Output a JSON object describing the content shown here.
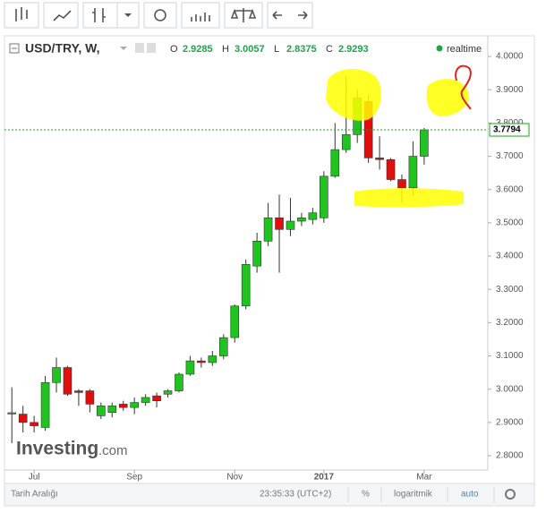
{
  "chart_data": {
    "type": "candlestick",
    "symbol": "USD/TRY, W,",
    "ohlc_header": [
      {
        "label": "O",
        "value": 2.9285
      },
      {
        "label": "H",
        "value": 3.0057
      },
      {
        "label": "L",
        "value": 2.8375
      },
      {
        "label": "C",
        "value": 2.9293
      }
    ],
    "realtime_label": "realtime",
    "categories": [
      null,
      null,
      "Jul",
      null,
      null,
      null,
      null,
      null,
      null,
      null,
      null,
      "Sep",
      null,
      null,
      null,
      null,
      null,
      null,
      null,
      null,
      "Nov",
      null,
      null,
      null,
      null,
      null,
      null,
      null,
      "2017",
      null,
      null,
      null,
      null,
      null,
      null,
      null,
      null,
      "Mar"
    ],
    "open": [
      2.9285,
      2.925,
      2.9,
      2.885,
      3.02,
      3.065,
      2.995,
      2.995,
      2.92,
      2.93,
      2.955,
      2.945,
      2.96,
      2.98,
      2.985,
      2.995,
      3.045,
      3.085,
      3.08,
      3.1,
      3.155,
      3.25,
      3.37,
      3.445,
      3.515,
      3.48,
      3.505,
      3.51,
      3.515,
      3.64,
      3.72,
      3.765,
      3.865,
      3.695,
      3.69,
      3.63,
      3.605,
      3.7
    ],
    "high": [
      3.0057,
      2.95,
      2.92,
      3.04,
      3.095,
      3.07,
      3.0,
      3.0,
      2.96,
      2.96,
      2.965,
      2.975,
      2.985,
      2.99,
      3.0,
      3.05,
      3.1,
      3.095,
      3.115,
      3.165,
      3.255,
      3.39,
      3.47,
      3.56,
      3.585,
      3.575,
      3.53,
      3.545,
      3.655,
      3.8,
      3.94,
      3.9,
      3.885,
      3.76,
      3.695,
      3.645,
      3.745,
      3.785
    ],
    "low": [
      2.8375,
      2.87,
      2.87,
      2.875,
      2.99,
      2.98,
      2.95,
      2.93,
      2.91,
      2.915,
      2.935,
      2.925,
      2.95,
      2.945,
      2.975,
      2.99,
      3.04,
      3.065,
      3.07,
      3.09,
      3.14,
      3.24,
      3.35,
      3.43,
      3.35,
      3.46,
      3.49,
      3.495,
      3.5,
      3.635,
      3.71,
      3.74,
      3.68,
      3.66,
      3.625,
      3.56,
      3.58,
      3.675
    ],
    "close": [
      2.9293,
      2.9,
      2.89,
      3.02,
      3.065,
      2.985,
      2.99,
      2.955,
      2.95,
      2.95,
      2.945,
      2.96,
      2.975,
      2.965,
      2.995,
      3.045,
      3.085,
      3.08,
      3.1,
      3.155,
      3.25,
      3.375,
      3.445,
      3.515,
      3.48,
      3.505,
      3.515,
      3.53,
      3.64,
      3.72,
      3.765,
      3.875,
      3.695,
      3.69,
      3.63,
      3.605,
      3.7,
      3.7794
    ],
    "up_color": "#1fc41f",
    "down_color": "#e20d0d",
    "last_price": 3.7794,
    "ylim": [
      2.757,
      4.062
    ],
    "yticks": [
      {
        "value": 2.8,
        "label": "2.8000"
      },
      {
        "value": 2.9,
        "label": "2.9000"
      },
      {
        "value": 3.0,
        "label": "3.0000"
      },
      {
        "value": 3.1,
        "label": "3.1000"
      },
      {
        "value": 3.2,
        "label": "3.2000"
      },
      {
        "value": 3.3,
        "label": "3.3000"
      },
      {
        "value": 3.4,
        "label": "3.4000"
      },
      {
        "value": 3.5,
        "label": "3.5000"
      },
      {
        "value": 3.6,
        "label": "3.6000"
      },
      {
        "value": 3.7,
        "label": "3.7000"
      },
      {
        "value": 3.8,
        "label": "3.8000"
      },
      {
        "value": 3.9,
        "label": "3.9000"
      },
      {
        "value": 4.0,
        "label": "4.0000"
      }
    ],
    "watermark": {
      "brand": "Investing",
      "suffix": ".com"
    }
  },
  "footer": {
    "range_label": "Tarih Aralığı",
    "time": "23:35:33 (UTC+2)",
    "percent": "%",
    "log": "logaritmik",
    "auto": "auto"
  }
}
